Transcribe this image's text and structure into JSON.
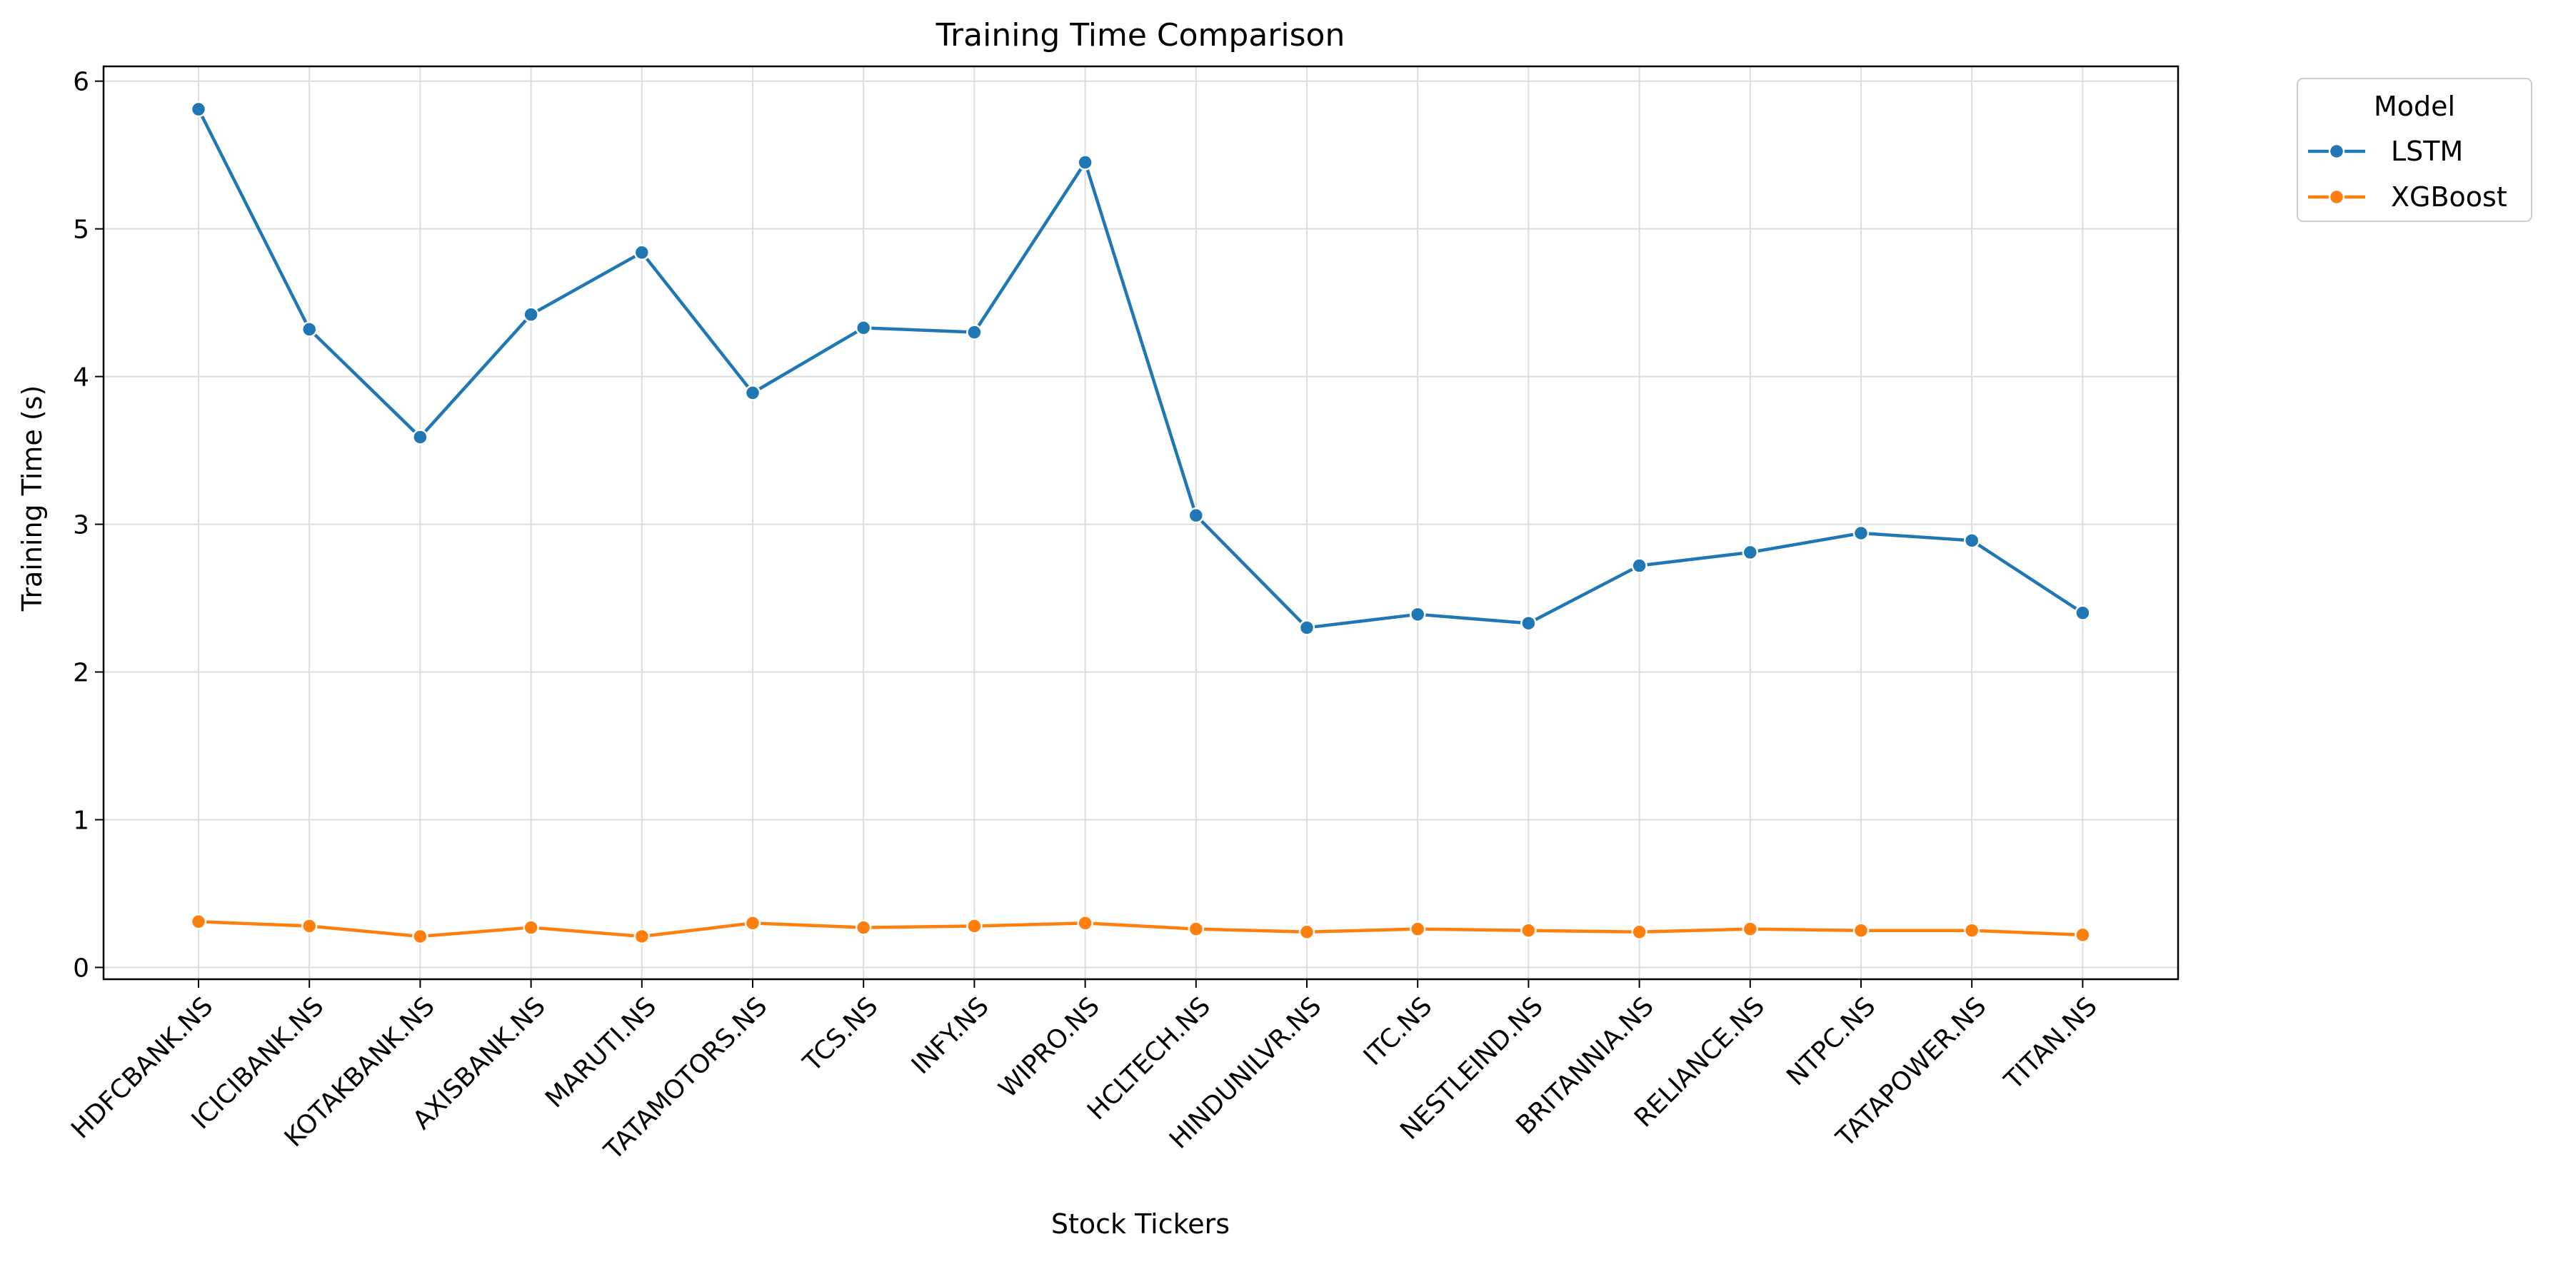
{
  "chart_data": {
    "type": "line",
    "title": "Training Time Comparison",
    "xlabel": "Stock Tickers",
    "ylabel": "Training Time (s)",
    "categories": [
      "HDFCBANK.NS",
      "ICICIBANK.NS",
      "KOTAKBANK.NS",
      "AXISBANK.NS",
      "MARUTI.NS",
      "TATAMOTORS.NS",
      "TCS.NS",
      "INFY.NS",
      "WIPRO.NS",
      "HCLTECH.NS",
      "HINDUNILVR.NS",
      "ITC.NS",
      "NESTLEIND.NS",
      "BRITANNIA.NS",
      "RELIANCE.NS",
      "NTPC.NS",
      "TATAPOWER.NS",
      "TITAN.NS"
    ],
    "yticks": [
      "0",
      "1",
      "2",
      "3",
      "4",
      "5",
      "6"
    ],
    "ylim": [
      -0.08,
      6.1
    ],
    "grid": true,
    "legend": {
      "title": "Model",
      "placement": "outside-top-right"
    },
    "series": [
      {
        "name": "LSTM",
        "color": "#1f77b4",
        "values": [
          5.81,
          4.32,
          3.59,
          4.42,
          4.84,
          3.89,
          4.33,
          4.3,
          5.45,
          3.06,
          2.3,
          2.39,
          2.33,
          2.72,
          2.81,
          2.94,
          2.89,
          2.4
        ]
      },
      {
        "name": "XGBoost",
        "color": "#ff7f0e",
        "values": [
          0.31,
          0.28,
          0.21,
          0.27,
          0.21,
          0.3,
          0.27,
          0.28,
          0.3,
          0.26,
          0.24,
          0.26,
          0.25,
          0.24,
          0.26,
          0.25,
          0.25,
          0.22
        ]
      }
    ]
  }
}
